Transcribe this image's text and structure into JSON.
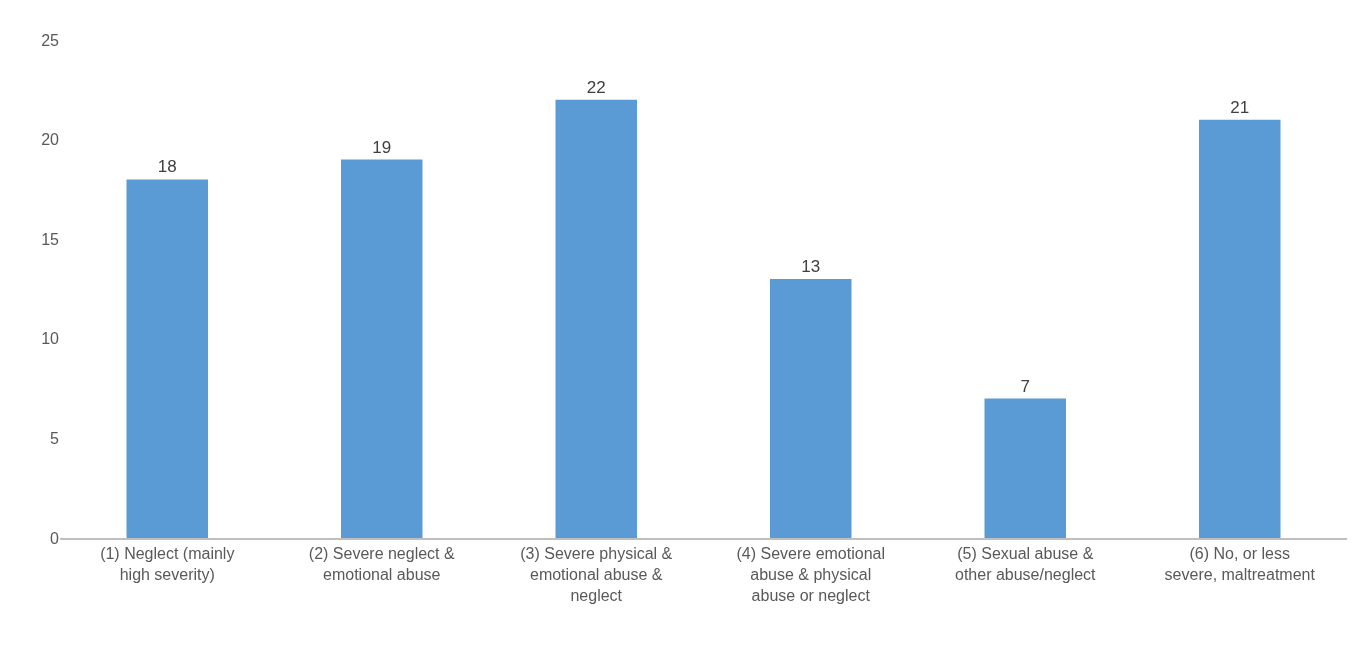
{
  "chart_data": {
    "type": "bar",
    "categories": [
      "(1) Neglect (mainly high severity)",
      "(2) Severe neglect & emotional abuse",
      "(3) Severe physical & emotional abuse & neglect",
      "(4) Severe emotional abuse & physical abuse or neglect",
      "(5) Sexual abuse & other abuse/neglect",
      "(6) No, or less severe, maltreatment"
    ],
    "values": [
      18,
      19,
      22,
      13,
      7,
      21
    ],
    "color": "#5b9bd5",
    "ylim": [
      0,
      25
    ],
    "yticks": [
      0,
      5,
      10,
      15,
      20,
      25
    ],
    "data_labels": true
  }
}
